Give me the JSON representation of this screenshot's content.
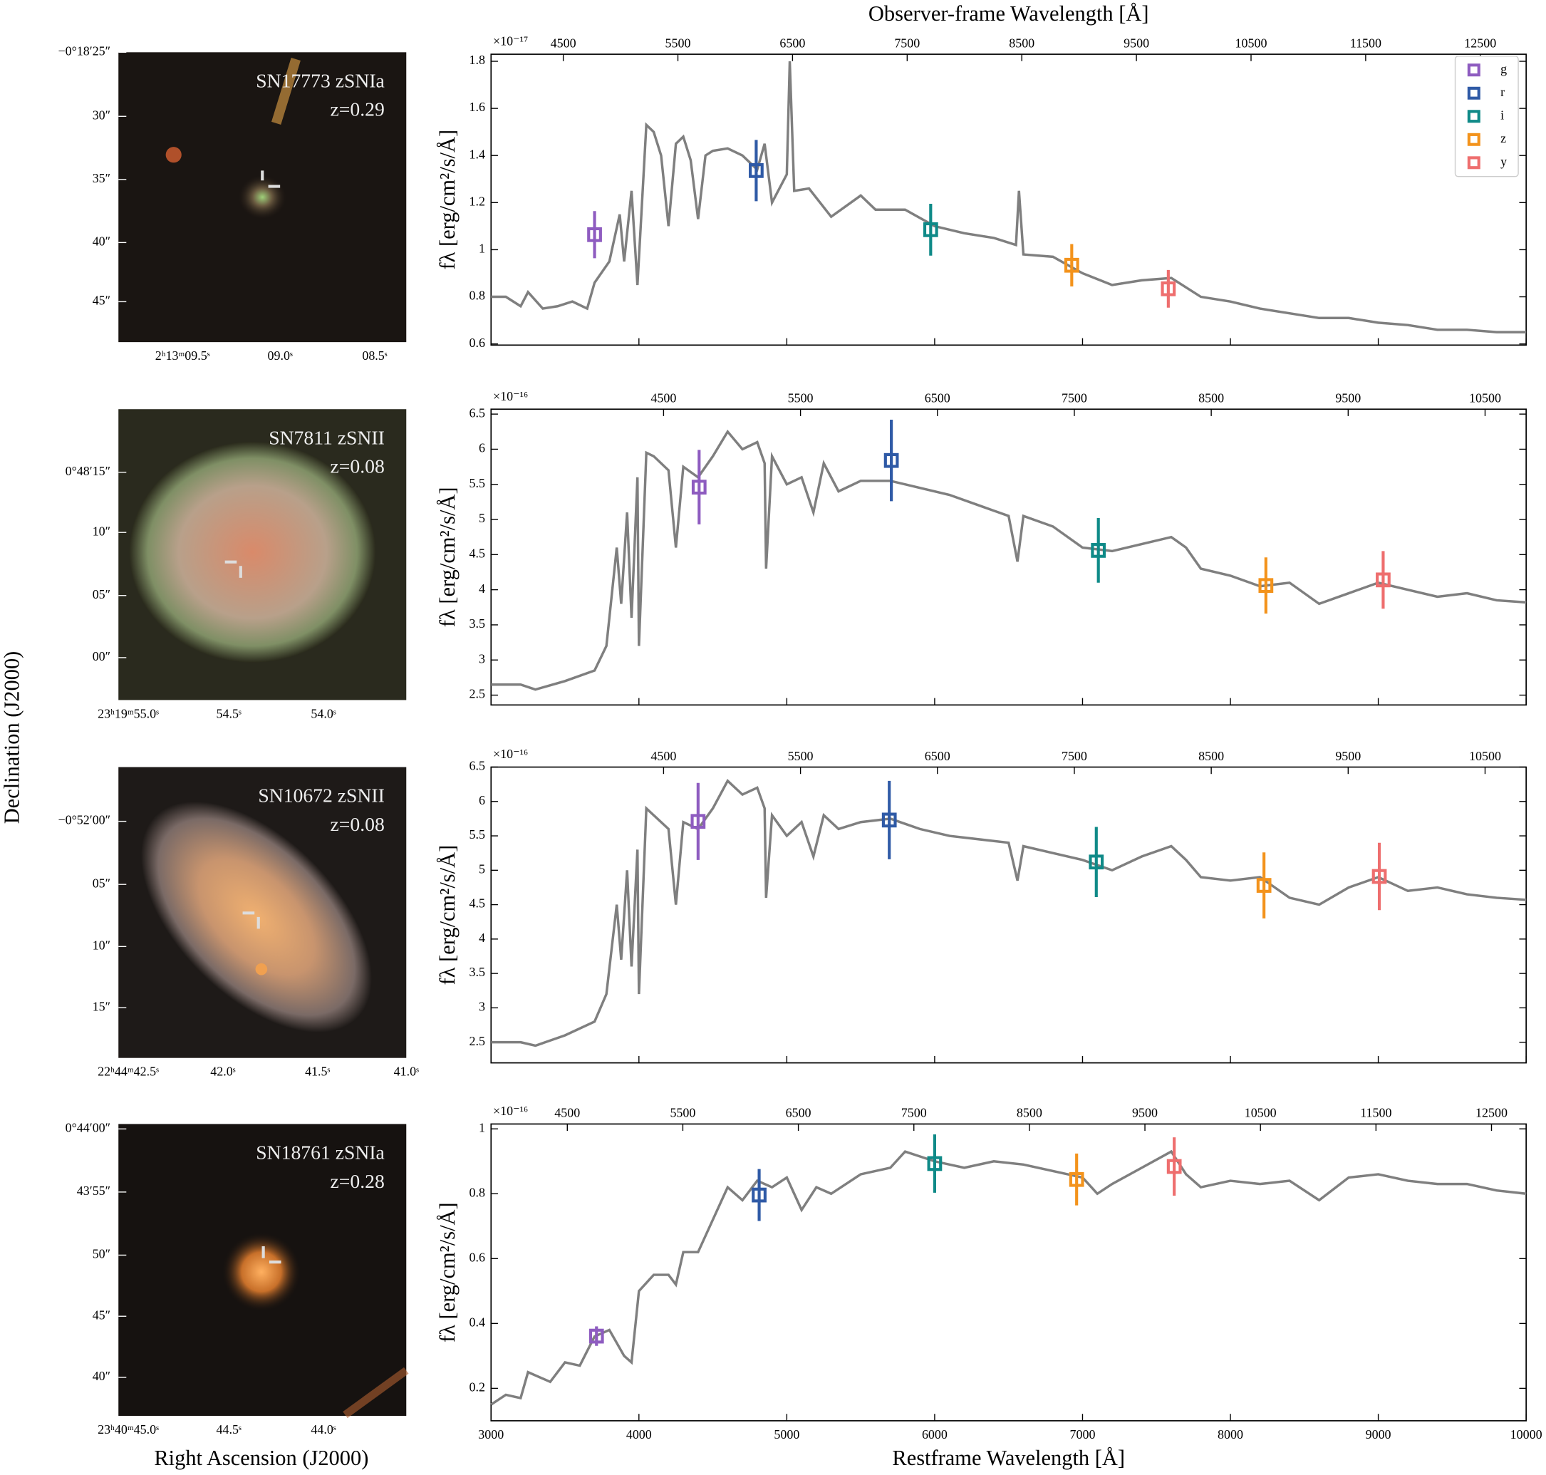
{
  "figure": {
    "ylabel": "Declination (J2000)",
    "xlabel": "Right Ascension (J2000)"
  },
  "cutouts": [
    {
      "name": "SN17773 zSNIa",
      "z": "z=0.29",
      "dec_ticks": [
        "−0°18′25″",
        "30″",
        "35″",
        "40″",
        "45″"
      ],
      "ra_ticks": [
        "2ʰ13ᵐ09.5ˢ",
        "09.0ˢ",
        "08.5ˢ"
      ]
    },
    {
      "name": "SN7811 zSNII",
      "z": "z=0.08",
      "dec_ticks": [
        "0°48′15″",
        "10″",
        "05″",
        "00″"
      ],
      "ra_ticks": [
        "23ʰ19ᵐ55.0ˢ",
        "54.5ˢ",
        "54.0ˢ"
      ]
    },
    {
      "name": "SN10672 zSNII",
      "z": "z=0.08",
      "dec_ticks": [
        "−0°52′00″",
        "05″",
        "10″",
        "15″"
      ],
      "ra_ticks": [
        "22ʰ44ᵐ42.5ˢ",
        "42.0ˢ",
        "41.5ˢ",
        "41.0ˢ"
      ]
    },
    {
      "name": "SN18761 zSNIa",
      "z": "z=0.28",
      "dec_ticks": [
        "0°44′00″",
        "43′55″",
        "50″",
        "45″",
        "40″"
      ],
      "ra_ticks": [
        "23ʰ40ᵐ45.0ˢ",
        "44.5ˢ",
        "44.0ˢ"
      ]
    }
  ],
  "chart_data": [
    {
      "type": "line",
      "ylabel": "fλ [erg/cm²/s/Å]",
      "scale_label": "×10⁻¹⁷",
      "x2label": "Observer-frame Wavelength [Å]",
      "xlim": [
        3000,
        10000
      ],
      "xticks": [
        3000,
        4000,
        5000,
        6000,
        7000,
        8000,
        9000,
        10000
      ],
      "xtick_labels": false,
      "x2lim": [
        3870,
        12900
      ],
      "x2ticks": [
        4500,
        5500,
        6500,
        7500,
        8500,
        9500,
        10500,
        11500,
        12500
      ],
      "ylim": [
        0.595,
        1.83
      ],
      "yticks": [
        0.6,
        0.8,
        1.0,
        1.2,
        1.4,
        1.6,
        1.8
      ],
      "legend": "upper right",
      "spectrum": {
        "color": "#7f7f7f",
        "x": [
          3000,
          3100,
          3200,
          3250,
          3350,
          3450,
          3550,
          3650,
          3700,
          3800,
          3870,
          3900,
          3950,
          3990,
          4050,
          4100,
          4150,
          4200,
          4250,
          4300,
          4350,
          4400,
          4450,
          4500,
          4600,
          4700,
          4800,
          4850,
          4900,
          5000,
          5020,
          5050,
          5150,
          5300,
          5500,
          5600,
          5800,
          6000,
          6200,
          6400,
          6550,
          6570,
          6600,
          6800,
          7000,
          7200,
          7400,
          7600,
          7800,
          8000,
          8200,
          8400,
          8600,
          8800,
          9000,
          9200,
          9400,
          9600,
          9800,
          10000
        ],
        "values": [
          0.8,
          0.8,
          0.76,
          0.82,
          0.75,
          0.76,
          0.78,
          0.75,
          0.86,
          0.95,
          1.15,
          0.95,
          1.25,
          0.85,
          1.53,
          1.5,
          1.4,
          1.1,
          1.45,
          1.48,
          1.38,
          1.13,
          1.4,
          1.42,
          1.43,
          1.4,
          1.34,
          1.45,
          1.2,
          1.32,
          1.8,
          1.25,
          1.26,
          1.14,
          1.23,
          1.17,
          1.17,
          1.1,
          1.07,
          1.05,
          1.02,
          1.25,
          0.98,
          0.97,
          0.9,
          0.85,
          0.87,
          0.88,
          0.8,
          0.78,
          0.75,
          0.73,
          0.71,
          0.71,
          0.69,
          0.68,
          0.66,
          0.66,
          0.65,
          0.65
        ]
      },
      "series": [
        {
          "name": "g",
          "color": "#8e5cc0",
          "x": [
            3700
          ],
          "values": [
            1.064
          ],
          "errors": [
            0.1
          ]
        },
        {
          "name": "r",
          "color": "#2f5aa6",
          "x": [
            4793
          ],
          "values": [
            1.336
          ],
          "errors": [
            0.13
          ]
        },
        {
          "name": "i",
          "color": "#0f8a88",
          "x": [
            5973
          ],
          "values": [
            1.085
          ],
          "errors": [
            0.11
          ]
        },
        {
          "name": "z",
          "color": "#f3931c",
          "x": [
            6927
          ],
          "values": [
            0.934
          ],
          "errors": [
            0.09
          ]
        },
        {
          "name": "y",
          "color": "#ee6e6e",
          "x": [
            7580
          ],
          "values": [
            0.834
          ],
          "errors": [
            0.08
          ]
        }
      ]
    },
    {
      "type": "line",
      "ylabel": "fλ [erg/cm²/s/Å]",
      "scale_label": "×10⁻¹⁶",
      "xlim": [
        3000,
        10000
      ],
      "xticks": [
        3000,
        4000,
        5000,
        6000,
        7000,
        8000,
        9000,
        10000
      ],
      "xtick_labels": false,
      "x2lim": [
        3240,
        10800
      ],
      "x2ticks": [
        4500,
        5500,
        6500,
        7500,
        8500,
        9500,
        10500
      ],
      "ylim": [
        2.36,
        6.57
      ],
      "yticks": [
        2.5,
        3.0,
        3.5,
        4.0,
        4.5,
        5.0,
        5.5,
        6.0,
        6.5
      ],
      "spectrum": {
        "color": "#7f7f7f",
        "x": [
          3000,
          3200,
          3300,
          3500,
          3700,
          3780,
          3850,
          3880,
          3920,
          3950,
          3990,
          4000,
          4050,
          4100,
          4200,
          4250,
          4300,
          4400,
          4500,
          4600,
          4700,
          4800,
          4850,
          4860,
          4900,
          5000,
          5100,
          5180,
          5250,
          5350,
          5500,
          5700,
          5900,
          6100,
          6300,
          6500,
          6560,
          6600,
          6800,
          7000,
          7200,
          7400,
          7600,
          7700,
          7800,
          8000,
          8200,
          8400,
          8600,
          8800,
          9000,
          9200,
          9400,
          9600,
          9800,
          10000
        ],
        "values": [
          2.65,
          2.65,
          2.58,
          2.7,
          2.85,
          3.2,
          4.6,
          3.8,
          5.1,
          3.6,
          5.6,
          3.2,
          5.95,
          5.9,
          5.7,
          4.6,
          5.75,
          5.6,
          5.9,
          6.25,
          6.0,
          6.1,
          5.8,
          4.3,
          5.9,
          5.5,
          5.6,
          5.1,
          5.8,
          5.4,
          5.55,
          5.55,
          5.45,
          5.35,
          5.2,
          5.05,
          4.4,
          5.05,
          4.9,
          4.6,
          4.55,
          4.65,
          4.75,
          4.6,
          4.3,
          4.2,
          4.05,
          4.1,
          3.8,
          3.95,
          4.1,
          4.0,
          3.9,
          3.95,
          3.85,
          3.82
        ]
      },
      "series": [
        {
          "color": "#8e5cc0",
          "x": [
            4407
          ],
          "values": [
            5.46
          ],
          "errors": [
            0.53
          ]
        },
        {
          "color": "#2f5aa6",
          "x": [
            5707
          ],
          "values": [
            5.84
          ],
          "errors": [
            0.58
          ]
        },
        {
          "color": "#0f8a88",
          "x": [
            7107
          ],
          "values": [
            4.56
          ],
          "errors": [
            0.46
          ]
        },
        {
          "color": "#f3931c",
          "x": [
            8240
          ],
          "values": [
            4.06
          ],
          "errors": [
            0.4
          ]
        },
        {
          "color": "#ee6e6e",
          "x": [
            9033
          ],
          "values": [
            4.14
          ],
          "errors": [
            0.41
          ]
        }
      ]
    },
    {
      "type": "line",
      "ylabel": "fλ [erg/cm²/s/Å]",
      "scale_label": "×10⁻¹⁶",
      "xlim": [
        3000,
        10000
      ],
      "xticks": [
        3000,
        4000,
        5000,
        6000,
        7000,
        8000,
        9000,
        10000
      ],
      "xtick_labels": false,
      "x2lim": [
        3240,
        10800
      ],
      "x2ticks": [
        4500,
        5500,
        6500,
        7500,
        8500,
        9500,
        10500
      ],
      "ylim": [
        2.2,
        6.5
      ],
      "yticks": [
        2.5,
        3.0,
        3.5,
        4.0,
        4.5,
        5.0,
        5.5,
        6.0,
        6.5
      ],
      "spectrum": {
        "color": "#7f7f7f",
        "x": [
          3000,
          3200,
          3300,
          3500,
          3700,
          3780,
          3850,
          3880,
          3920,
          3950,
          3990,
          4000,
          4050,
          4100,
          4200,
          4250,
          4300,
          4400,
          4500,
          4600,
          4700,
          4800,
          4850,
          4860,
          4900,
          5000,
          5100,
          5180,
          5250,
          5350,
          5500,
          5700,
          5900,
          6100,
          6300,
          6500,
          6560,
          6600,
          6800,
          7000,
          7200,
          7400,
          7600,
          7700,
          7800,
          8000,
          8200,
          8400,
          8600,
          8800,
          9000,
          9200,
          9400,
          9600,
          9800,
          10000
        ],
        "values": [
          2.5,
          2.5,
          2.45,
          2.6,
          2.8,
          3.2,
          4.5,
          3.7,
          5.0,
          3.6,
          5.3,
          3.2,
          5.9,
          5.8,
          5.6,
          4.5,
          5.7,
          5.6,
          5.9,
          6.3,
          6.1,
          6.2,
          5.9,
          4.6,
          5.8,
          5.5,
          5.7,
          5.2,
          5.8,
          5.6,
          5.7,
          5.75,
          5.6,
          5.5,
          5.45,
          5.4,
          4.85,
          5.35,
          5.25,
          5.15,
          5.0,
          5.2,
          5.35,
          5.15,
          4.9,
          4.85,
          4.9,
          4.6,
          4.5,
          4.75,
          4.9,
          4.7,
          4.75,
          4.65,
          4.6,
          4.57
        ]
      },
      "series": [
        {
          "color": "#8e5cc0",
          "x": [
            4400
          ],
          "values": [
            5.71
          ],
          "errors": [
            0.56
          ]
        },
        {
          "color": "#2f5aa6",
          "x": [
            5693
          ],
          "values": [
            5.73
          ],
          "errors": [
            0.57
          ]
        },
        {
          "color": "#0f8a88",
          "x": [
            7093
          ],
          "values": [
            5.12
          ],
          "errors": [
            0.51
          ]
        },
        {
          "color": "#f3931c",
          "x": [
            8227
          ],
          "values": [
            4.78
          ],
          "errors": [
            0.48
          ]
        },
        {
          "color": "#ee6e6e",
          "x": [
            9007
          ],
          "values": [
            4.91
          ],
          "errors": [
            0.49
          ]
        }
      ]
    },
    {
      "type": "line",
      "ylabel": "fλ [erg/cm²/s/Å]",
      "scale_label": "×10⁻¹⁶",
      "xlabel": "Restframe Wavelength [Å]",
      "xlim": [
        3000,
        10000
      ],
      "xticks": [
        3000,
        4000,
        5000,
        6000,
        7000,
        8000,
        9000,
        10000
      ],
      "xtick_labels": true,
      "x2lim": [
        3840,
        12800
      ],
      "x2ticks": [
        4500,
        5500,
        6500,
        7500,
        8500,
        9500,
        10500,
        11500,
        12500
      ],
      "ylim": [
        0.1,
        1.015
      ],
      "yticks": [
        0.2,
        0.4,
        0.6,
        0.8,
        1.0
      ],
      "spectrum": {
        "color": "#7f7f7f",
        "x": [
          3000,
          3100,
          3200,
          3250,
          3400,
          3500,
          3600,
          3700,
          3800,
          3900,
          3950,
          4000,
          4100,
          4200,
          4250,
          4300,
          4400,
          4500,
          4600,
          4700,
          4800,
          4900,
          5000,
          5100,
          5200,
          5300,
          5500,
          5700,
          5800,
          6000,
          6200,
          6400,
          6600,
          6800,
          7000,
          7100,
          7200,
          7400,
          7600,
          7700,
          7800,
          8000,
          8200,
          8400,
          8600,
          8800,
          9000,
          9200,
          9400,
          9600,
          9800,
          10000
        ],
        "values": [
          0.15,
          0.18,
          0.17,
          0.25,
          0.22,
          0.28,
          0.27,
          0.36,
          0.38,
          0.3,
          0.28,
          0.5,
          0.55,
          0.55,
          0.52,
          0.62,
          0.62,
          0.72,
          0.82,
          0.78,
          0.84,
          0.82,
          0.85,
          0.75,
          0.82,
          0.8,
          0.86,
          0.88,
          0.93,
          0.9,
          0.88,
          0.9,
          0.89,
          0.87,
          0.85,
          0.8,
          0.83,
          0.88,
          0.93,
          0.86,
          0.82,
          0.84,
          0.83,
          0.84,
          0.78,
          0.85,
          0.86,
          0.84,
          0.83,
          0.83,
          0.81,
          0.8
        ]
      },
      "series": [
        {
          "color": "#8e5cc0",
          "x": [
            3713
          ],
          "values": [
            0.361
          ],
          "errors": [
            0.03
          ]
        },
        {
          "color": "#2f5aa6",
          "x": [
            4813
          ],
          "values": [
            0.796
          ],
          "errors": [
            0.08
          ]
        },
        {
          "color": "#0f8a88",
          "x": [
            6000
          ],
          "values": [
            0.893
          ],
          "errors": [
            0.09
          ]
        },
        {
          "color": "#f3931c",
          "x": [
            6960
          ],
          "values": [
            0.844
          ],
          "errors": [
            0.08
          ]
        },
        {
          "color": "#ee6e6e",
          "x": [
            7620
          ],
          "values": [
            0.884
          ],
          "errors": [
            0.09
          ]
        }
      ]
    }
  ]
}
